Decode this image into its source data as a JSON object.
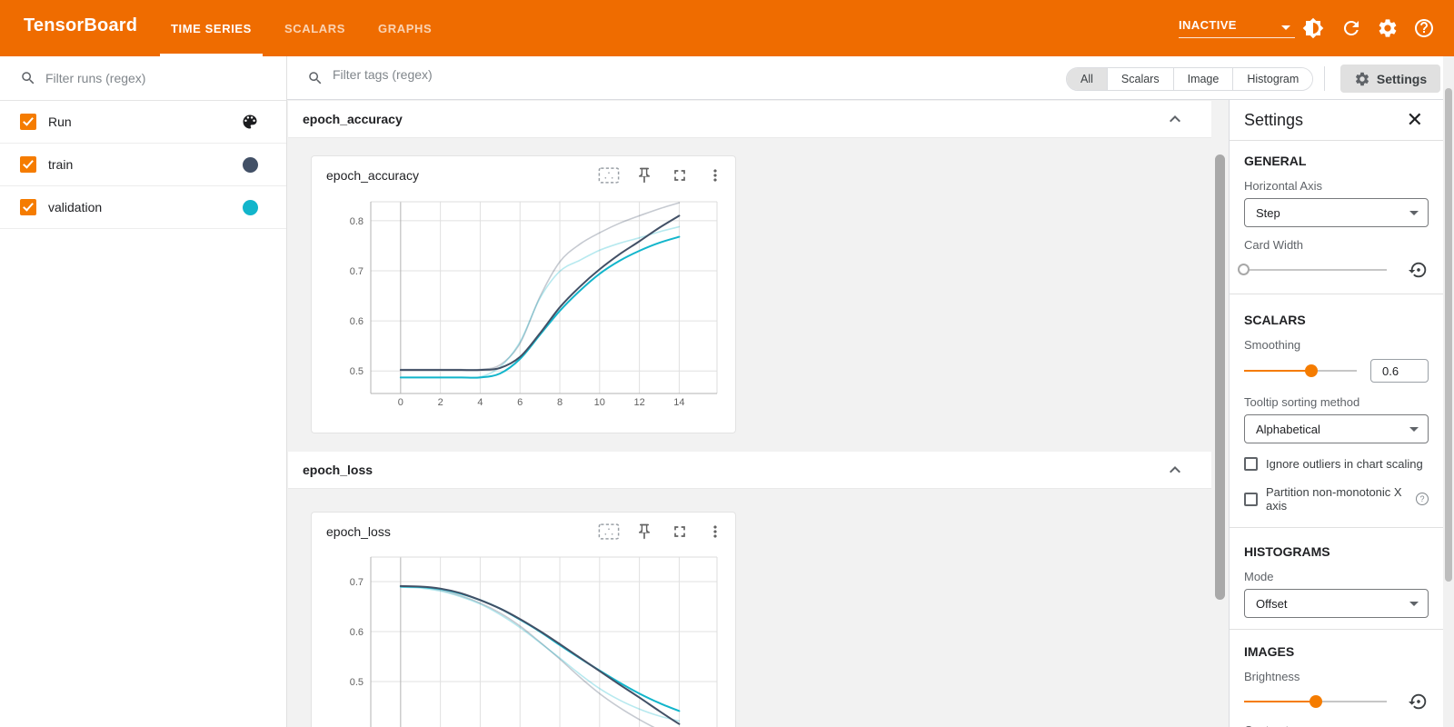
{
  "colors": {
    "header_bg": "#ef6c00",
    "accent_orange": "#f57c00",
    "train_color": "#425066",
    "validation_color": "#12b5cb",
    "train_faded": "rgba(66,80,102,0.3)",
    "validation_faded": "rgba(18,181,203,0.3)"
  },
  "header": {
    "app_title": "TensorBoard",
    "tabs": [
      {
        "label": "TIME SERIES",
        "active": true
      },
      {
        "label": "SCALARS",
        "active": false
      },
      {
        "label": "GRAPHS",
        "active": false
      }
    ],
    "status": {
      "value": "INACTIVE"
    },
    "icons": {
      "brightness": "brightness-toggle-icon",
      "refresh": "refresh-icon",
      "gear": "settings-gear-icon",
      "help": "help-icon"
    }
  },
  "runs_panel": {
    "filter_placeholder": "Filter runs (regex)",
    "rows": [
      {
        "label": "Run",
        "checked": true,
        "indicator": "palette-icon"
      },
      {
        "label": "train",
        "checked": true,
        "color": "#425066"
      },
      {
        "label": "validation",
        "checked": true,
        "color": "#12b5cb"
      }
    ]
  },
  "toolbar": {
    "filter_placeholder": "Filter tags (regex)",
    "filters": [
      {
        "label": "All",
        "selected": true
      },
      {
        "label": "Scalars",
        "selected": false
      },
      {
        "label": "Image",
        "selected": false
      },
      {
        "label": "Histogram",
        "selected": false
      }
    ],
    "settings_button": "Settings"
  },
  "sections": [
    {
      "title": "epoch_accuracy",
      "collapsed": false
    },
    {
      "title": "epoch_loss",
      "collapsed": false
    }
  ],
  "chart_data": [
    {
      "type": "line",
      "title": "epoch_accuracy",
      "x": [
        0,
        1,
        2,
        3,
        4,
        5,
        6,
        7,
        8,
        9,
        10,
        11,
        12,
        13,
        14
      ],
      "xticks": [
        0,
        2,
        4,
        6,
        8,
        10,
        12,
        14
      ],
      "yticks": [
        0.5,
        0.6,
        0.7,
        0.8
      ],
      "xlim": [
        -1.5,
        15.9
      ],
      "ylim": [
        0.455,
        0.838
      ],
      "grid": true,
      "legend_position": "none",
      "series": [
        {
          "name": "train (original)",
          "color": "rgba(66,80,102,0.3)",
          "width": 1.6,
          "values": [
            0.503,
            0.503,
            0.503,
            0.503,
            0.503,
            0.512,
            0.555,
            0.648,
            0.718,
            0.753,
            0.776,
            0.795,
            0.81,
            0.824,
            0.836
          ]
        },
        {
          "name": "validation (original)",
          "color": "rgba(18,181,203,0.3)",
          "width": 1.6,
          "values": [
            0.487,
            0.487,
            0.487,
            0.487,
            0.488,
            0.508,
            0.558,
            0.645,
            0.699,
            0.721,
            0.741,
            0.755,
            0.766,
            0.778,
            0.788
          ]
        },
        {
          "name": "validation (smoothed 0.6)",
          "color": "#12b5cb",
          "width": 2,
          "values": [
            0.487,
            0.487,
            0.487,
            0.487,
            0.487,
            0.495,
            0.524,
            0.572,
            0.62,
            0.66,
            0.694,
            0.72,
            0.74,
            0.756,
            0.768
          ]
        },
        {
          "name": "train (smoothed 0.6)",
          "color": "#425066",
          "width": 2,
          "values": [
            0.502,
            0.502,
            0.502,
            0.502,
            0.502,
            0.506,
            0.528,
            0.575,
            0.627,
            0.668,
            0.703,
            0.733,
            0.759,
            0.786,
            0.81
          ]
        }
      ]
    },
    {
      "type": "line",
      "title": "epoch_loss",
      "x": [
        0,
        1,
        2,
        3,
        4,
        5,
        6,
        7,
        8,
        9,
        10,
        11,
        12,
        13,
        14
      ],
      "xticks": [
        0,
        2,
        4,
        6,
        8,
        10,
        12,
        14
      ],
      "yticks": [
        0.5,
        0.6,
        0.7
      ],
      "xlim": [
        -1.5,
        15.9
      ],
      "ylim": [
        0.4,
        0.749
      ],
      "grid": true,
      "legend_position": "none",
      "clipped_at_viewport_bottom": true,
      "series": [
        {
          "name": "train (original)",
          "color": "rgba(66,80,102,0.3)",
          "width": 1.6,
          "values": [
            0.691,
            0.689,
            0.683,
            0.672,
            0.657,
            0.637,
            0.611,
            0.579,
            0.545,
            0.509,
            0.476,
            0.448,
            0.424,
            0.403,
            0.385
          ]
        },
        {
          "name": "validation (original)",
          "color": "rgba(18,181,203,0.3)",
          "width": 1.6,
          "values": [
            0.689,
            0.687,
            0.681,
            0.67,
            0.655,
            0.634,
            0.608,
            0.578,
            0.547,
            0.515,
            0.486,
            0.463,
            0.445,
            0.431,
            0.421
          ]
        },
        {
          "name": "validation (smoothed 0.6)",
          "color": "#12b5cb",
          "width": 2,
          "values": [
            0.69,
            0.689,
            0.685,
            0.676,
            0.663,
            0.646,
            0.624,
            0.6,
            0.573,
            0.547,
            0.522,
            0.498,
            0.476,
            0.457,
            0.441
          ]
        },
        {
          "name": "train (smoothed 0.6)",
          "color": "#425066",
          "width": 2,
          "values": [
            0.691,
            0.69,
            0.686,
            0.677,
            0.663,
            0.646,
            0.625,
            0.601,
            0.575,
            0.548,
            0.521,
            0.494,
            0.468,
            0.441,
            0.415
          ]
        }
      ]
    }
  ],
  "cards": [
    {
      "title": "epoch_accuracy",
      "icons": [
        "fit-domain-icon",
        "pin-icon",
        "fullscreen-icon",
        "more-options-icon"
      ]
    },
    {
      "title": "epoch_loss",
      "icons": [
        "fit-domain-icon",
        "pin-icon",
        "fullscreen-icon",
        "more-options-icon"
      ]
    }
  ],
  "settings": {
    "title": "Settings",
    "general": {
      "heading": "GENERAL",
      "horizontal_axis_label": "Horizontal Axis",
      "horizontal_axis_value": "Step",
      "card_width_label": "Card Width",
      "card_width_percent": 0
    },
    "scalars": {
      "heading": "SCALARS",
      "smoothing_label": "Smoothing",
      "smoothing_percent": 60,
      "smoothing_value": "0.6",
      "tooltip_label": "Tooltip sorting method",
      "tooltip_value": "Alphabetical",
      "checkbox_outliers": "Ignore outliers in chart scaling",
      "checkbox_partition": "Partition non-monotonic X axis",
      "outliers_checked": false,
      "partition_checked": false
    },
    "histograms": {
      "heading": "HISTOGRAMS",
      "mode_label": "Mode",
      "mode_value": "Offset"
    },
    "images": {
      "heading": "IMAGES",
      "brightness_label": "Brightness",
      "brightness_percent": 50,
      "contrast_label": "Contrast"
    }
  }
}
